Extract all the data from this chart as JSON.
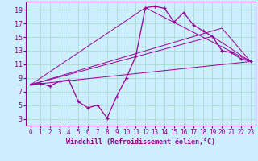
{
  "xlabel": "Windchill (Refroidissement éolien,°C)",
  "background_color": "#cceeff",
  "grid_color": "#aaddcc",
  "line_color": "#990099",
  "xlim": [
    -0.5,
    23.5
  ],
  "ylim": [
    2,
    20.2
  ],
  "xticks": [
    0,
    1,
    2,
    3,
    4,
    5,
    6,
    7,
    8,
    9,
    10,
    11,
    12,
    13,
    14,
    15,
    16,
    17,
    18,
    19,
    20,
    21,
    22,
    23
  ],
  "yticks": [
    3,
    5,
    7,
    9,
    11,
    13,
    15,
    17,
    19
  ],
  "series_main": {
    "x": [
      0,
      1,
      2,
      3,
      4,
      5,
      6,
      7,
      8,
      9,
      10,
      11,
      12,
      13,
      14,
      15,
      16,
      17,
      18,
      19,
      20,
      21,
      22,
      23
    ],
    "y": [
      8.0,
      8.2,
      7.8,
      8.5,
      8.7,
      5.5,
      4.6,
      5.0,
      3.1,
      6.3,
      9.0,
      12.2,
      19.3,
      19.5,
      19.2,
      17.2,
      18.6,
      16.8,
      15.9,
      15.1,
      13.0,
      12.7,
      11.8,
      11.4
    ]
  },
  "series_lines": [
    {
      "x": [
        0,
        23
      ],
      "y": [
        8.0,
        11.4
      ]
    },
    {
      "x": [
        0,
        12,
        23
      ],
      "y": [
        8.0,
        19.3,
        11.4
      ]
    },
    {
      "x": [
        0,
        19,
        23
      ],
      "y": [
        8.0,
        15.1,
        11.4
      ]
    },
    {
      "x": [
        0,
        20,
        23
      ],
      "y": [
        8.0,
        16.3,
        11.4
      ]
    }
  ],
  "tick_fontsize": 5.5,
  "xlabel_fontsize": 6.0,
  "tick_color": "#880088",
  "spine_color": "#880088"
}
